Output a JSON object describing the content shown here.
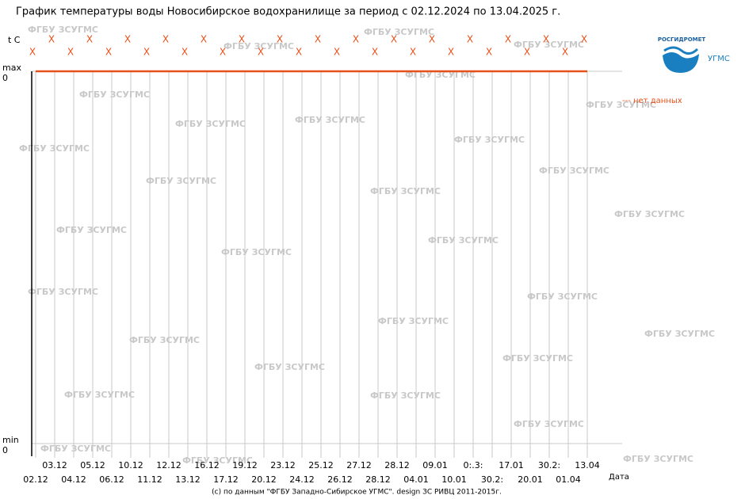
{
  "chart_data": {
    "type": "line",
    "title": "График температуры воды Новосибирское водохранилище за период с 02.12.2024 по 13.04.2025 г.",
    "y_axis": {
      "unit": "t C",
      "max_label": "max",
      "max_value": "0",
      "min_label": "min",
      "min_value": "0"
    },
    "x_label": "Дата",
    "categories": [
      "02.12",
      "03.12",
      "04.12",
      "05.12",
      "06.12",
      "10.12",
      "11.12",
      "12.12",
      "13.12",
      "16.12",
      "17.12",
      "19.12",
      "20.12",
      "23.12",
      "24.12",
      "25.12",
      "26.12",
      "27.12",
      "28.12",
      "28.12",
      "04.01",
      "09.01",
      "10.01",
      "0:.3:",
      "30.2:",
      "17.01",
      "20.01",
      "30.2:",
      "01.04",
      "13.04"
    ],
    "values": [
      null,
      null,
      null,
      null,
      null,
      null,
      null,
      null,
      null,
      null,
      null,
      null,
      null,
      null,
      null,
      null,
      null,
      null,
      null,
      null,
      null,
      null,
      null,
      null,
      null,
      null,
      null,
      null,
      null,
      null
    ],
    "no_data_marker": "X",
    "no_data_legend": "--- нет данных",
    "no_data_color": "#e8501a",
    "grid": true,
    "watermark": "ФГБУ ЗСУГМС",
    "footer": "(c) по данным \"ФГБУ Западно-Сибирское УГМС\". design ЗС РИВЦ 2011-2015г.",
    "logo": {
      "name": "РОСГИДРОМЕТ",
      "sub": "УГМС"
    }
  }
}
